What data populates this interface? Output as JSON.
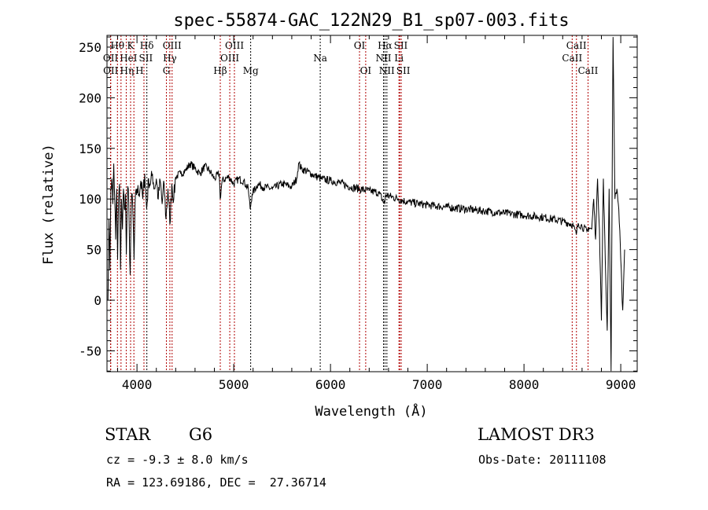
{
  "chart_data": {
    "type": "line",
    "title": "spec-55874-GAC_122N29_B1_sp07-003.fits",
    "xlabel": "Wavelength (Å)",
    "ylabel": "Flux (relative)",
    "xlim": [
      3690,
      9170
    ],
    "ylim": [
      -70.6,
      261.6
    ],
    "xticks": [
      4000,
      5000,
      6000,
      7000,
      8000,
      9000
    ],
    "yticks": [
      -50,
      0,
      50,
      100,
      150,
      200,
      250
    ],
    "grid": false,
    "series": [
      {
        "name": "spectrum",
        "points": [
          [
            3700,
            0
          ],
          [
            3710,
            80
          ],
          [
            3720,
            30
          ],
          [
            3730,
            110
          ],
          [
            3740,
            120
          ],
          [
            3750,
            95
          ],
          [
            3760,
            135
          ],
          [
            3770,
            100
          ],
          [
            3780,
            60
          ],
          [
            3790,
            110
          ],
          [
            3800,
            40
          ],
          [
            3810,
            100
          ],
          [
            3820,
            115
          ],
          [
            3830,
            30
          ],
          [
            3840,
            100
          ],
          [
            3850,
            70
          ],
          [
            3860,
            110
          ],
          [
            3870,
            90
          ],
          [
            3880,
            105
          ],
          [
            3890,
            45
          ],
          [
            3900,
            100
          ],
          [
            3910,
            110
          ],
          [
            3920,
            70
          ],
          [
            3930,
            25
          ],
          [
            3940,
            90
          ],
          [
            3950,
            105
          ],
          [
            3960,
            80
          ],
          [
            3970,
            40
          ],
          [
            3980,
            95
          ],
          [
            4000,
            110
          ],
          [
            4020,
            105
          ],
          [
            4040,
            118
          ],
          [
            4060,
            100
          ],
          [
            4080,
            125
          ],
          [
            4100,
            90
          ],
          [
            4120,
            120
          ],
          [
            4140,
            115
          ],
          [
            4160,
            125
          ],
          [
            4180,
            110
          ],
          [
            4200,
            120
          ],
          [
            4220,
            100
          ],
          [
            4240,
            118
          ],
          [
            4260,
            95
          ],
          [
            4280,
            115
          ],
          [
            4300,
            80
          ],
          [
            4320,
            110
          ],
          [
            4340,
            75
          ],
          [
            4360,
            115
          ],
          [
            4380,
            100
          ],
          [
            4400,
            122
          ],
          [
            4450,
            125
          ],
          [
            4500,
            128
          ],
          [
            4550,
            135
          ],
          [
            4600,
            130
          ],
          [
            4650,
            125
          ],
          [
            4700,
            132
          ],
          [
            4750,
            128
          ],
          [
            4800,
            120
          ],
          [
            4850,
            125
          ],
          [
            4860,
            100
          ],
          [
            4880,
            118
          ],
          [
            4950,
            122
          ],
          [
            5000,
            115
          ],
          [
            5050,
            120
          ],
          [
            5100,
            118
          ],
          [
            5150,
            110
          ],
          [
            5170,
            90
          ],
          [
            5190,
            105
          ],
          [
            5250,
            115
          ],
          [
            5300,
            112
          ],
          [
            5400,
            110
          ],
          [
            5500,
            115
          ],
          [
            5600,
            112
          ],
          [
            5650,
            120
          ],
          [
            5670,
            135
          ],
          [
            5700,
            130
          ],
          [
            5800,
            125
          ],
          [
            5900,
            120
          ],
          [
            6000,
            118
          ],
          [
            6100,
            116
          ],
          [
            6200,
            112
          ],
          [
            6300,
            110
          ],
          [
            6400,
            108
          ],
          [
            6500,
            106
          ],
          [
            6560,
            95
          ],
          [
            6570,
            104
          ],
          [
            6700,
            100
          ],
          [
            6800,
            97
          ],
          [
            7000,
            94
          ],
          [
            7200,
            92
          ],
          [
            7400,
            90
          ],
          [
            7600,
            88
          ],
          [
            7800,
            86
          ],
          [
            8000,
            84
          ],
          [
            8200,
            82
          ],
          [
            8400,
            78
          ],
          [
            8500,
            75
          ],
          [
            8540,
            65
          ],
          [
            8560,
            76
          ],
          [
            8600,
            73
          ],
          [
            8650,
            68
          ],
          [
            8670,
            72
          ],
          [
            8700,
            70
          ],
          [
            8720,
            100
          ],
          [
            8740,
            60
          ],
          [
            8760,
            120
          ],
          [
            8780,
            70
          ],
          [
            8800,
            -20
          ],
          [
            8820,
            120
          ],
          [
            8840,
            40
          ],
          [
            8860,
            -30
          ],
          [
            8880,
            110
          ],
          [
            8900,
            -70
          ],
          [
            8920,
            260
          ],
          [
            8940,
            100
          ],
          [
            8960,
            110
          ],
          [
            8980,
            90
          ],
          [
            9000,
            40
          ],
          [
            9020,
            -10
          ],
          [
            9040,
            50
          ]
        ]
      }
    ],
    "lines": [
      {
        "label": "Hθ",
        "wl": 3798,
        "row": 0,
        "color": "#b00000"
      },
      {
        "label": "K",
        "wl": 3934,
        "row": 0,
        "color": "#b00000"
      },
      {
        "label": "Hδ",
        "wl": 4102,
        "row": 0,
        "color": "#000000"
      },
      {
        "label": "OIII",
        "wl": 4363,
        "row": 0,
        "color": "#b00000"
      },
      {
        "label": "OIII",
        "wl": 5007,
        "row": 0,
        "color": "#b00000"
      },
      {
        "label": "OI",
        "wl": 6300,
        "row": 0,
        "color": "#b00000"
      },
      {
        "label": "Hα",
        "wl": 6563,
        "row": 0,
        "color": "#000000"
      },
      {
        "label": "SII",
        "wl": 6716,
        "row": 0,
        "color": "#b00000"
      },
      {
        "label": "CaII",
        "wl": 8542,
        "row": 0,
        "color": "#b00000"
      },
      {
        "label": "OII",
        "wl": 3727,
        "row": 1,
        "color": "#b00000"
      },
      {
        "label": "HeI",
        "wl": 3889,
        "row": 1,
        "color": "#b00000"
      },
      {
        "label": "SII",
        "wl": 4072,
        "row": 1,
        "color": "#b00000"
      },
      {
        "label": "Hγ",
        "wl": 4340,
        "row": 1,
        "color": "#b00000"
      },
      {
        "label": "OIII",
        "wl": 4959,
        "row": 1,
        "color": "#b00000"
      },
      {
        "label": "Na",
        "wl": 5894,
        "row": 1,
        "color": "#000000"
      },
      {
        "label": "NII",
        "wl": 6548,
        "row": 1,
        "color": "#000000"
      },
      {
        "label": "Li",
        "wl": 6708,
        "row": 1,
        "color": "#b00000"
      },
      {
        "label": "CaII",
        "wl": 8498,
        "row": 1,
        "color": "#b00000"
      },
      {
        "label": "OII",
        "wl": 3729,
        "row": 2,
        "color": "#b00000"
      },
      {
        "label": "Hη",
        "wl": 3835,
        "row": 2,
        "color": "#b00000"
      },
      {
        "label": "H",
        "wl": 3968,
        "row": 2,
        "color": "#b00000"
      },
      {
        "label": "G",
        "wl": 4304,
        "row": 2,
        "color": "#b00000"
      },
      {
        "label": "Hβ",
        "wl": 4861,
        "row": 2,
        "color": "#b00000"
      },
      {
        "label": "Mg",
        "wl": 5175,
        "row": 2,
        "color": "#000000"
      },
      {
        "label": "OI",
        "wl": 6364,
        "row": 2,
        "color": "#b00000"
      },
      {
        "label": "NII",
        "wl": 6583,
        "row": 2,
        "color": "#000000"
      },
      {
        "label": "SII",
        "wl": 6731,
        "row": 2,
        "color": "#b00000"
      },
      {
        "label": "CaII",
        "wl": 8662,
        "row": 2,
        "color": "#b00000"
      }
    ]
  },
  "info": {
    "object_type": "STAR",
    "subclass": "G6",
    "survey": "LAMOST DR3",
    "cz": "cz = -9.3 ± 8.0 km/s",
    "obs_date": "Obs-Date: 20111108",
    "coords": "RA = 123.69186, DEC =  27.36714"
  }
}
